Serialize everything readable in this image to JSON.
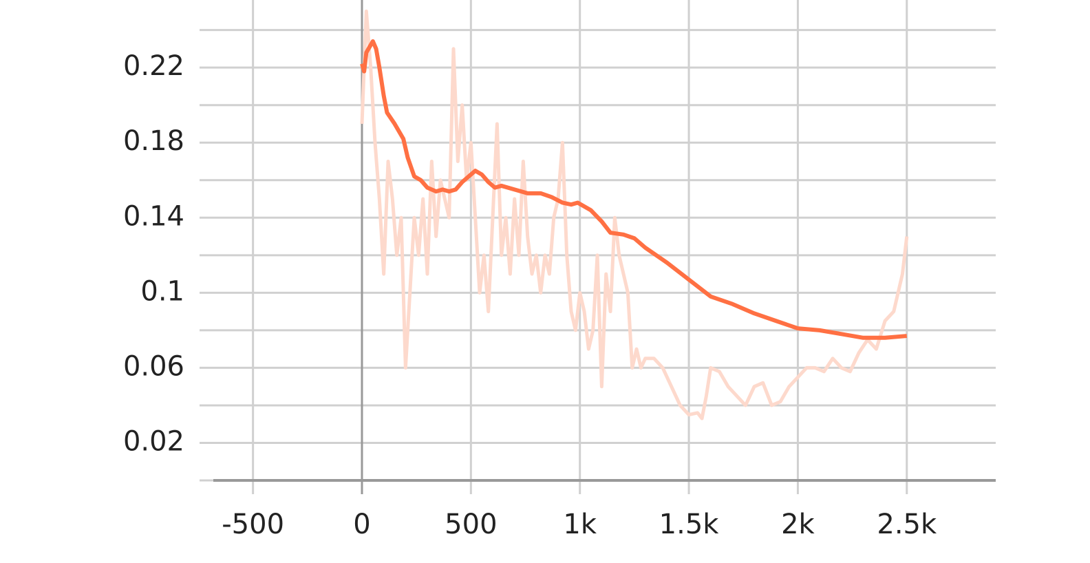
{
  "chart_data": {
    "type": "line",
    "xlim": [
      -682,
      2908
    ],
    "ylim": [
      0,
      0.256
    ],
    "xticks": [
      -500,
      0,
      500,
      {
        "value": 1000,
        "label": "1k"
      },
      {
        "value": 1500,
        "label": "1.5k"
      },
      {
        "value": 2000,
        "label": "2k"
      },
      {
        "value": 2500,
        "label": "2.5k"
      }
    ],
    "yticks": [
      0.02,
      0.06,
      0.1,
      0.14,
      0.18,
      0.22
    ],
    "minor_yticks": [
      0,
      0.04,
      0.08,
      0.12,
      0.16,
      0.2,
      0.24
    ],
    "grid": true,
    "series": [
      {
        "color": "#fdd9cc",
        "x": [
          0,
          20,
          40,
          60,
          80,
          100,
          120,
          140,
          160,
          180,
          200,
          220,
          240,
          260,
          280,
          300,
          320,
          340,
          360,
          380,
          400,
          420,
          440,
          460,
          480,
          500,
          520,
          540,
          560,
          580,
          600,
          620,
          640,
          660,
          680,
          700,
          720,
          740,
          760,
          780,
          800,
          820,
          840,
          860,
          880,
          900,
          920,
          940,
          960,
          980,
          1000,
          1020,
          1040,
          1060,
          1080,
          1100,
          1120,
          1140,
          1160,
          1180,
          1200,
          1220,
          1240,
          1260,
          1280,
          1300,
          1340,
          1380,
          1420,
          1460,
          1500,
          1540,
          1560,
          1580,
          1600,
          1640,
          1680,
          1720,
          1760,
          1800,
          1840,
          1880,
          1920,
          1960,
          2000,
          2040,
          2080,
          2120,
          2160,
          2200,
          2240,
          2280,
          2320,
          2360,
          2400,
          2440,
          2480,
          2500
        ],
        "values": [
          0.19,
          0.25,
          0.22,
          0.18,
          0.15,
          0.11,
          0.17,
          0.15,
          0.12,
          0.14,
          0.06,
          0.1,
          0.14,
          0.12,
          0.15,
          0.11,
          0.17,
          0.13,
          0.16,
          0.15,
          0.14,
          0.23,
          0.17,
          0.2,
          0.16,
          0.18,
          0.14,
          0.1,
          0.12,
          0.09,
          0.14,
          0.19,
          0.12,
          0.14,
          0.11,
          0.15,
          0.12,
          0.17,
          0.13,
          0.11,
          0.12,
          0.1,
          0.12,
          0.11,
          0.14,
          0.15,
          0.18,
          0.12,
          0.09,
          0.08,
          0.1,
          0.09,
          0.07,
          0.08,
          0.12,
          0.05,
          0.11,
          0.09,
          0.14,
          0.12,
          0.11,
          0.1,
          0.06,
          0.07,
          0.06,
          0.065,
          0.065,
          0.06,
          0.05,
          0.04,
          0.035,
          0.036,
          0.033,
          0.045,
          0.06,
          0.058,
          0.05,
          0.045,
          0.04,
          0.05,
          0.052,
          0.04,
          0.042,
          0.05,
          0.055,
          0.06,
          0.06,
          0.058,
          0.065,
          0.06,
          0.058,
          0.068,
          0.075,
          0.07,
          0.085,
          0.09,
          0.11,
          0.13
        ]
      },
      {
        "color": "#ff7043",
        "x": [
          0,
          10,
          20,
          40,
          50,
          65,
          80,
          100,
          115,
          150,
          190,
          210,
          240,
          270,
          300,
          340,
          370,
          400,
          430,
          460,
          500,
          520,
          550,
          580,
          610,
          640,
          700,
          760,
          820,
          870,
          920,
          960,
          990,
          1050,
          1100,
          1140,
          1200,
          1250,
          1300,
          1400,
          1500,
          1600,
          1700,
          1800,
          1900,
          2000,
          2100,
          2200,
          2300,
          2400,
          2500
        ],
        "values": [
          0.222,
          0.218,
          0.228,
          0.232,
          0.234,
          0.23,
          0.22,
          0.205,
          0.196,
          0.19,
          0.182,
          0.172,
          0.162,
          0.16,
          0.156,
          0.154,
          0.155,
          0.154,
          0.155,
          0.159,
          0.163,
          0.165,
          0.163,
          0.159,
          0.156,
          0.157,
          0.155,
          0.153,
          0.153,
          0.151,
          0.148,
          0.147,
          0.148,
          0.144,
          0.138,
          0.132,
          0.131,
          0.129,
          0.124,
          0.116,
          0.107,
          0.098,
          0.094,
          0.089,
          0.085,
          0.081,
          0.08,
          0.078,
          0.076,
          0.076,
          0.077
        ]
      }
    ]
  }
}
